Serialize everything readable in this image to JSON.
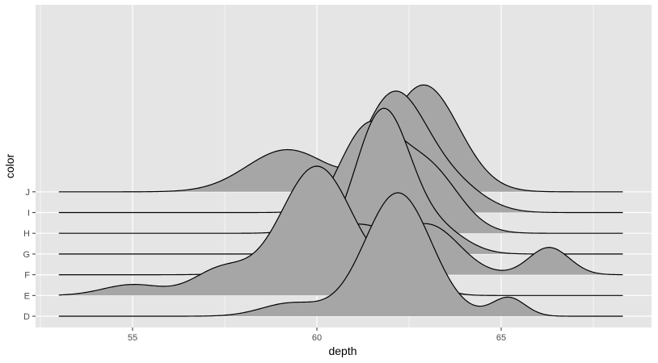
{
  "chart_data": {
    "type": "ridgeline",
    "title": "",
    "xlabel": "depth",
    "ylabel": "color",
    "xlim": [
      52.3,
      68.6
    ],
    "x_ticks": [
      55,
      60,
      65
    ],
    "grid": true,
    "fill_color": "#a6a6a6",
    "line_color": "#000000",
    "panel_background": "#e5e5e5",
    "grid_color": "#ffffff",
    "series": [
      {
        "name": "D",
        "components": [
          {
            "mu": 59.3,
            "sigma": 0.8,
            "h": 0.9
          },
          {
            "mu": 62.2,
            "sigma": 0.9,
            "h": 8.5
          },
          {
            "mu": 65.2,
            "sigma": 0.45,
            "h": 1.28
          }
        ]
      },
      {
        "name": "E",
        "components": [
          {
            "mu": 55.0,
            "sigma": 0.8,
            "h": 0.75
          },
          {
            "mu": 57.4,
            "sigma": 0.75,
            "h": 1.76
          },
          {
            "mu": 60.0,
            "sigma": 1.0,
            "h": 8.9
          },
          {
            "mu": 62.5,
            "sigma": 0.6,
            "h": 2.0
          }
        ]
      },
      {
        "name": "F",
        "components": [
          {
            "mu": 59.5,
            "sigma": 1.0,
            "h": 0.9
          },
          {
            "mu": 61.1,
            "sigma": 0.9,
            "h": 3.1
          },
          {
            "mu": 63.1,
            "sigma": 0.8,
            "h": 3.2
          },
          {
            "mu": 66.3,
            "sigma": 0.55,
            "h": 1.88
          }
        ]
      },
      {
        "name": "G",
        "components": [
          {
            "mu": 61.8,
            "sigma": 0.75,
            "h": 9.93
          },
          {
            "mu": 63.4,
            "sigma": 0.7,
            "h": 1.4
          }
        ]
      },
      {
        "name": "H",
        "components": [
          {
            "mu": 61.4,
            "sigma": 0.85,
            "h": 7.25
          },
          {
            "mu": 63.1,
            "sigma": 0.8,
            "h": 4.0
          }
        ]
      },
      {
        "name": "I",
        "components": [
          {
            "mu": 62.1,
            "sigma": 0.9,
            "h": 8.2
          },
          {
            "mu": 63.8,
            "sigma": 0.8,
            "h": 1.5
          }
        ]
      },
      {
        "name": "J",
        "components": [
          {
            "mu": 59.2,
            "sigma": 1.1,
            "h": 2.9
          },
          {
            "mu": 62.9,
            "sigma": 0.95,
            "h": 7.35
          }
        ]
      }
    ]
  }
}
